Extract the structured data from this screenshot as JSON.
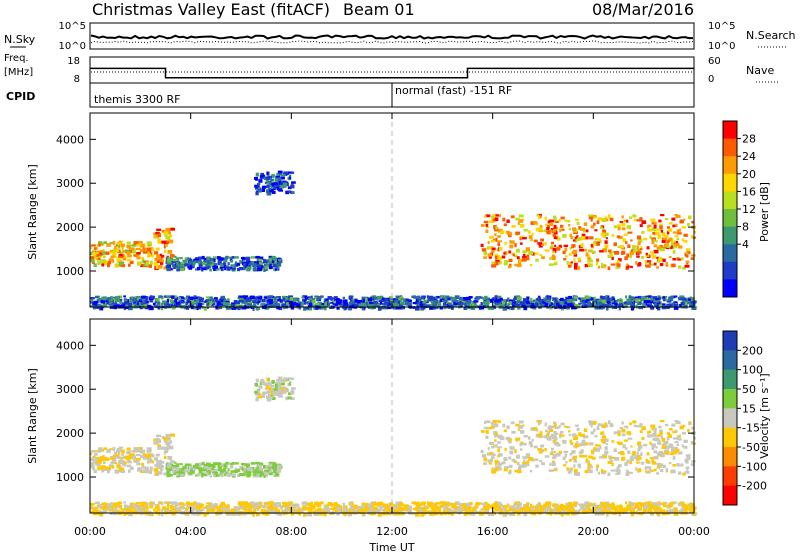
{
  "header": {
    "title": "Christmas Valley East (fitACF)",
    "beam": "Beam 01",
    "date": "08/Mar/2016"
  },
  "noise_panel": {
    "left_label": "N.Sky",
    "right_label": "N.Search",
    "left_ticks": [
      "10^5",
      "10^0"
    ],
    "right_ticks": [
      "10^5",
      "10^0"
    ]
  },
  "freq_panel": {
    "left_label_1": "Freq.",
    "left_label_2": "[MHz]",
    "right_label": "Nave",
    "left_ticks": [
      "18",
      "8"
    ],
    "right_ticks": [
      "60",
      "0"
    ]
  },
  "cpid_panel": {
    "label": "CPID",
    "modes": [
      {
        "start_hour": 0,
        "text": "themis 3300 RF"
      },
      {
        "start_hour": 12,
        "text": "normal (fast) -151 RF"
      }
    ]
  },
  "power_scale": {
    "label": "Power [dB]",
    "ticks": [
      "28",
      "24",
      "20",
      "16",
      "12",
      "8",
      "4"
    ],
    "colors": [
      "#ff0000",
      "#ff5a00",
      "#ff9b00",
      "#ffd700",
      "#b9e01e",
      "#6fbe3c",
      "#3c9a6e",
      "#2a6aa0",
      "#1e3cc8",
      "#0000ff"
    ]
  },
  "velocity_scale": {
    "label": "Velocity [m s⁻¹]",
    "ticks": [
      "200",
      "100",
      "50",
      "15",
      "-15",
      "-50",
      "-100",
      "-200"
    ],
    "colors": [
      "#1e3cb4",
      "#2a6aa0",
      "#3c9a6e",
      "#7ccd3c",
      "#c8c8be",
      "#ffc800",
      "#ff8c00",
      "#ff3c00",
      "#ff0000"
    ]
  },
  "axes": {
    "ylabel": "Slant Range [km]",
    "xlabel": "Time UT",
    "xticks": [
      "00:00",
      "04:00",
      "08:00",
      "12:00",
      "16:00",
      "20:00",
      "00:00"
    ],
    "yticks": [
      "4000",
      "3000",
      "2000",
      "1000"
    ]
  },
  "chart_data": {
    "type": "heatmap",
    "title": "Christmas Valley East (fitACF)",
    "xlabel": "Time UT",
    "ylabel": "Slant Range [km]",
    "xlim_hours": [
      0,
      24
    ],
    "ylim_km": [
      180,
      4600
    ],
    "frequency_mhz": [
      {
        "start_hour": 0,
        "end_hour": 3,
        "value": 13.6
      },
      {
        "start_hour": 3,
        "end_hour": 15,
        "value": 10.0
      },
      {
        "start_hour": 15,
        "end_hour": 24,
        "value": 13.6
      }
    ],
    "echo_regions": [
      {
        "name": "early-band",
        "t0": 0.0,
        "t1": 2.5,
        "r0": 1150,
        "r1": 1700,
        "power_db": 22,
        "velocity": -10
      },
      {
        "name": "rising-arc",
        "t0": 2.5,
        "t1": 3.2,
        "r0": 1100,
        "r1": 2000,
        "power_db": 25,
        "velocity": -5
      },
      {
        "name": "descending-band",
        "t0": 3.0,
        "t1": 7.5,
        "r0": 1050,
        "r1": 1350,
        "power_db": 8,
        "velocity": 20
      },
      {
        "name": "far-echoes",
        "t0": 6.5,
        "t1": 8.0,
        "r0": 2800,
        "r1": 3300,
        "power_db": 6,
        "velocity": 0
      },
      {
        "name": "evening-band",
        "t0": 15.5,
        "t1": 24.0,
        "r0": 1100,
        "r1": 2300,
        "power_db": 24,
        "velocity": -10
      },
      {
        "name": "ground-scatter",
        "t0": 0.0,
        "t1": 24.0,
        "r0": 180,
        "r1": 450,
        "power_db": 8,
        "velocity": -20
      }
    ]
  }
}
